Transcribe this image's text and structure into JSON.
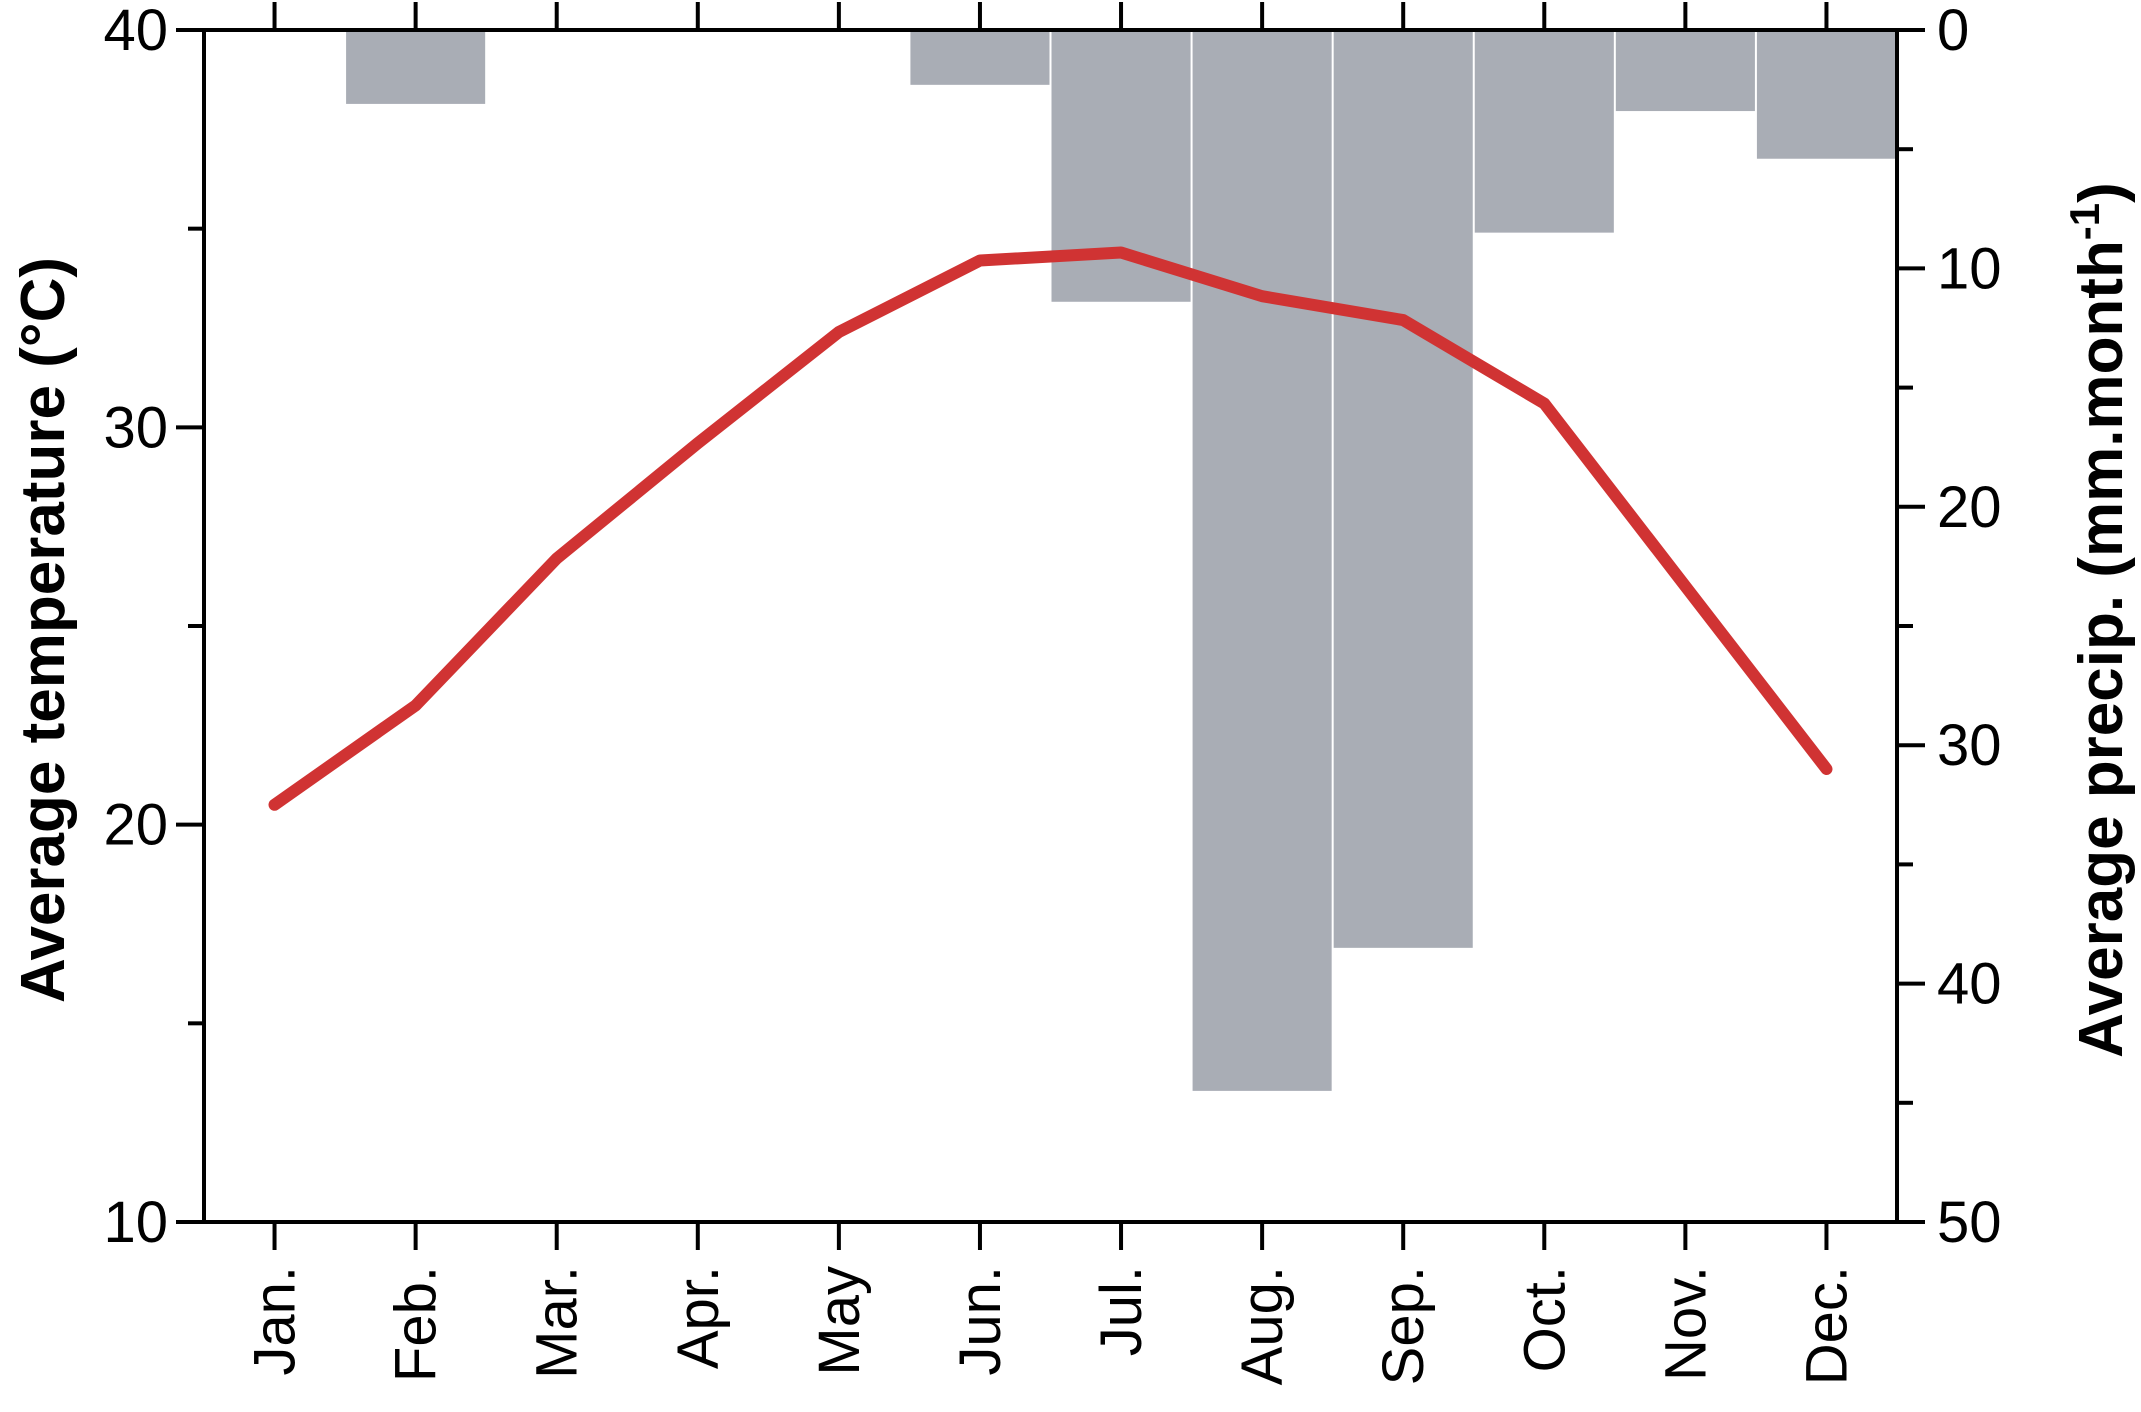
{
  "chart_data": {
    "type": "bar+line",
    "categories": [
      "Jan.",
      "Feb.",
      "Mar.",
      "Apr.",
      "May",
      "Jun.",
      "Jul.",
      "Aug.",
      "Sep.",
      "Oct.",
      "Nov.",
      "Dec."
    ],
    "left_axis": {
      "label": "Average temperature (°C)",
      "range": [
        10,
        40
      ],
      "ticks": [
        "10",
        "20",
        "30",
        "40"
      ]
    },
    "right_axis": {
      "label_main": "Average precip. (mm.month",
      "label_sup": "-1",
      "label_close": ")",
      "range": [
        0,
        50
      ],
      "inverted": true,
      "ticks": [
        "0",
        "10",
        "20",
        "30",
        "40",
        "50"
      ]
    },
    "series": [
      {
        "kind": "bar",
        "axis": "right",
        "color": "#a9adb5",
        "values": [
          0,
          3.1,
          0,
          0,
          0,
          2.3,
          11.4,
          44.5,
          38.5,
          8.5,
          3.4,
          5.4
        ]
      },
      {
        "kind": "line",
        "axis": "left",
        "color": "#d03333",
        "values": [
          20.5,
          23.0,
          26.7,
          29.6,
          32.4,
          34.2,
          34.4,
          33.3,
          32.7,
          30.6,
          26.0,
          21.4
        ]
      }
    ],
    "grid": false,
    "legend": "none"
  }
}
